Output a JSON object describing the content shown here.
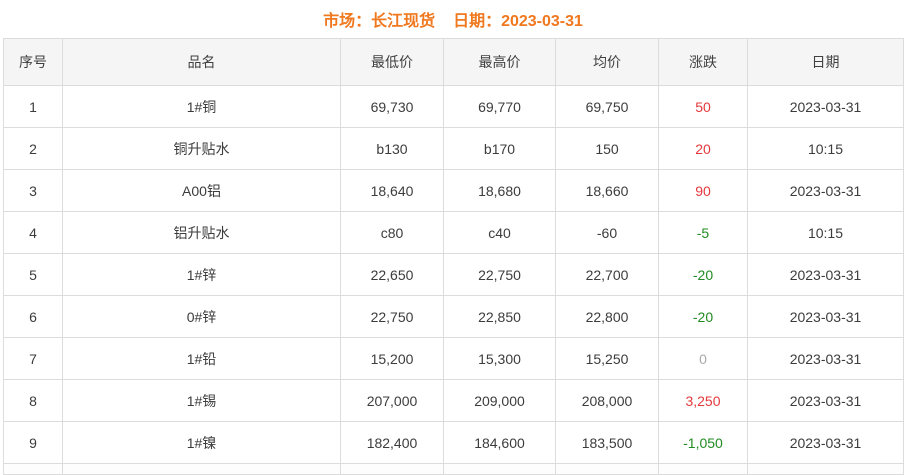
{
  "header": {
    "market_label": "市场：长江现货",
    "date_label": "日期：2023-03-31"
  },
  "colors": {
    "title": "#f0781e",
    "up": "#e4393c",
    "down": "#228b22",
    "flat": "#aaaaaa",
    "header_bg": "#f5f5f5",
    "border": "#dcdcdc"
  },
  "table": {
    "columns": [
      {
        "key": "index",
        "label": "序号"
      },
      {
        "key": "name",
        "label": "品名"
      },
      {
        "key": "low",
        "label": "最低价"
      },
      {
        "key": "high",
        "label": "最高价"
      },
      {
        "key": "avg",
        "label": "均价"
      },
      {
        "key": "change",
        "label": "涨跌"
      },
      {
        "key": "date",
        "label": "日期"
      }
    ],
    "rows": [
      {
        "index": "1",
        "name": "1#铜",
        "low": "69,730",
        "high": "69,770",
        "avg": "69,750",
        "change": "50",
        "change_dir": "up",
        "date": "2023-03-31"
      },
      {
        "index": "2",
        "name": "铜升贴水",
        "low": "b130",
        "high": "b170",
        "avg": "150",
        "change": "20",
        "change_dir": "up",
        "date": "10:15"
      },
      {
        "index": "3",
        "name": "A00铝",
        "low": "18,640",
        "high": "18,680",
        "avg": "18,660",
        "change": "90",
        "change_dir": "up",
        "date": "2023-03-31"
      },
      {
        "index": "4",
        "name": "铝升贴水",
        "low": "c80",
        "high": "c40",
        "avg": "-60",
        "change": "-5",
        "change_dir": "down",
        "date": "10:15"
      },
      {
        "index": "5",
        "name": "1#锌",
        "low": "22,650",
        "high": "22,750",
        "avg": "22,700",
        "change": "-20",
        "change_dir": "down",
        "date": "2023-03-31"
      },
      {
        "index": "6",
        "name": "0#锌",
        "low": "22,750",
        "high": "22,850",
        "avg": "22,800",
        "change": "-20",
        "change_dir": "down",
        "date": "2023-03-31"
      },
      {
        "index": "7",
        "name": "1#铅",
        "low": "15,200",
        "high": "15,300",
        "avg": "15,250",
        "change": "0",
        "change_dir": "flat",
        "date": "2023-03-31"
      },
      {
        "index": "8",
        "name": "1#锡",
        "low": "207,000",
        "high": "209,000",
        "avg": "208,000",
        "change": "3,250",
        "change_dir": "up",
        "date": "2023-03-31"
      },
      {
        "index": "9",
        "name": "1#镍",
        "low": "182,400",
        "high": "184,600",
        "avg": "183,500",
        "change": "-1,050",
        "change_dir": "down",
        "date": "2023-03-31"
      }
    ]
  }
}
